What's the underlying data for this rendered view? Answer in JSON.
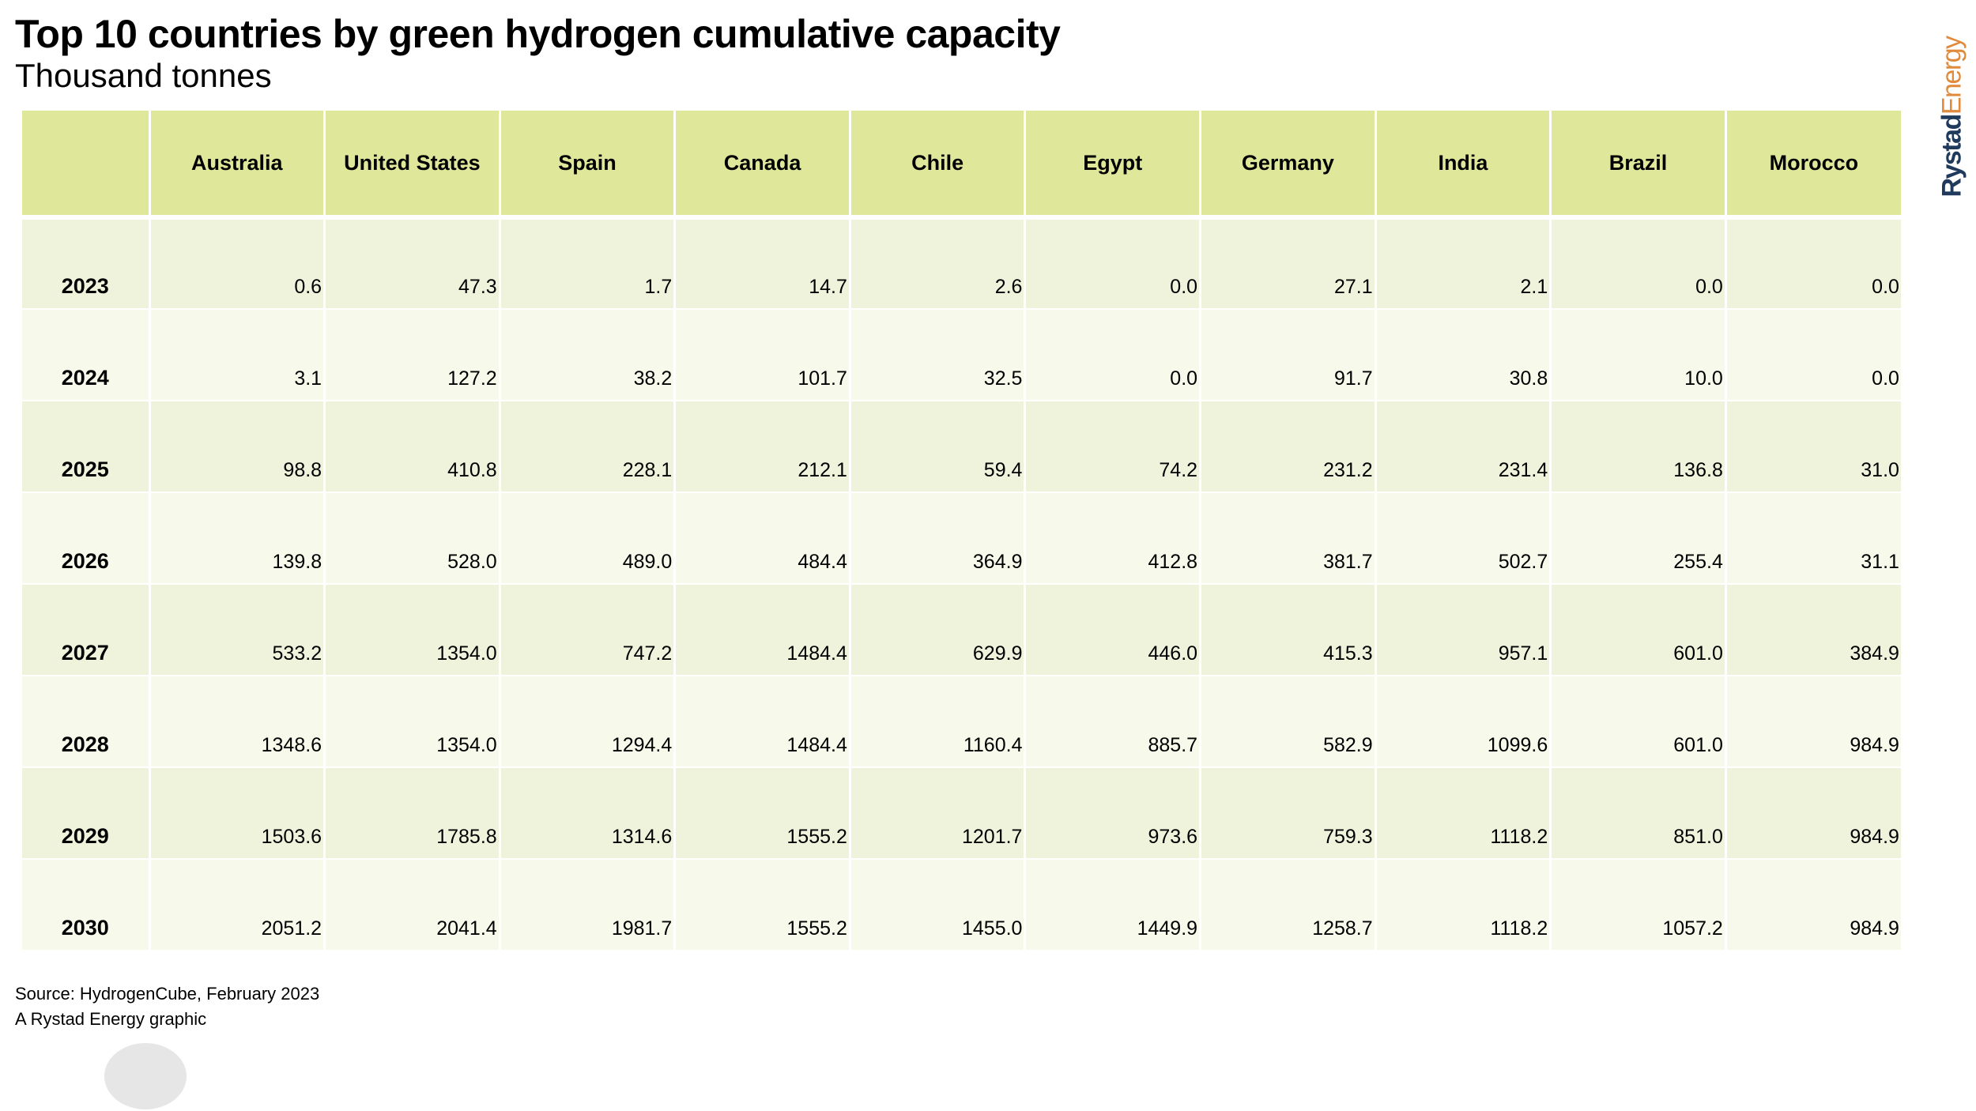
{
  "title": "Top 10 countries by green hydrogen cumulative capacity",
  "subtitle": "Thousand tonnes",
  "logo": {
    "part1": "Rystad",
    "part2": "Energy"
  },
  "source": "Source: HydrogenCube, February 2023",
  "credit": "A Rystad Energy graphic",
  "colors": {
    "header_bg": "#dfe79a",
    "row_odd": "#f0f3dc",
    "row_even": "#f7f9ea",
    "logo_dark": "#1f3a5c",
    "logo_accent": "#e08a3c"
  },
  "chart_data": {
    "type": "table",
    "title": "Top 10 countries by green hydrogen cumulative capacity",
    "subtitle": "Thousand tonnes",
    "columns": [
      "",
      "Australia",
      "United States",
      "Spain",
      "Canada",
      "Chile",
      "Egypt",
      "Germany",
      "India",
      "Brazil",
      "Morocco"
    ],
    "rows": [
      {
        "year": "2023",
        "values": [
          "0.6",
          "47.3",
          "1.7",
          "14.7",
          "2.6",
          "0.0",
          "27.1",
          "2.1",
          "0.0",
          "0.0"
        ]
      },
      {
        "year": "2024",
        "values": [
          "3.1",
          "127.2",
          "38.2",
          "101.7",
          "32.5",
          "0.0",
          "91.7",
          "30.8",
          "10.0",
          "0.0"
        ]
      },
      {
        "year": "2025",
        "values": [
          "98.8",
          "410.8",
          "228.1",
          "212.1",
          "59.4",
          "74.2",
          "231.2",
          "231.4",
          "136.8",
          "31.0"
        ]
      },
      {
        "year": "2026",
        "values": [
          "139.8",
          "528.0",
          "489.0",
          "484.4",
          "364.9",
          "412.8",
          "381.7",
          "502.7",
          "255.4",
          "31.1"
        ]
      },
      {
        "year": "2027",
        "values": [
          "533.2",
          "1354.0",
          "747.2",
          "1484.4",
          "629.9",
          "446.0",
          "415.3",
          "957.1",
          "601.0",
          "384.9"
        ]
      },
      {
        "year": "2028",
        "values": [
          "1348.6",
          "1354.0",
          "1294.4",
          "1484.4",
          "1160.4",
          "885.7",
          "582.9",
          "1099.6",
          "601.0",
          "984.9"
        ]
      },
      {
        "year": "2029",
        "values": [
          "1503.6",
          "1785.8",
          "1314.6",
          "1555.2",
          "1201.7",
          "973.6",
          "759.3",
          "1118.2",
          "851.0",
          "984.9"
        ]
      },
      {
        "year": "2030",
        "values": [
          "2051.2",
          "2041.4",
          "1981.7",
          "1555.2",
          "1455.0",
          "1449.9",
          "1258.7",
          "1118.2",
          "1057.2",
          "984.9"
        ]
      }
    ]
  }
}
